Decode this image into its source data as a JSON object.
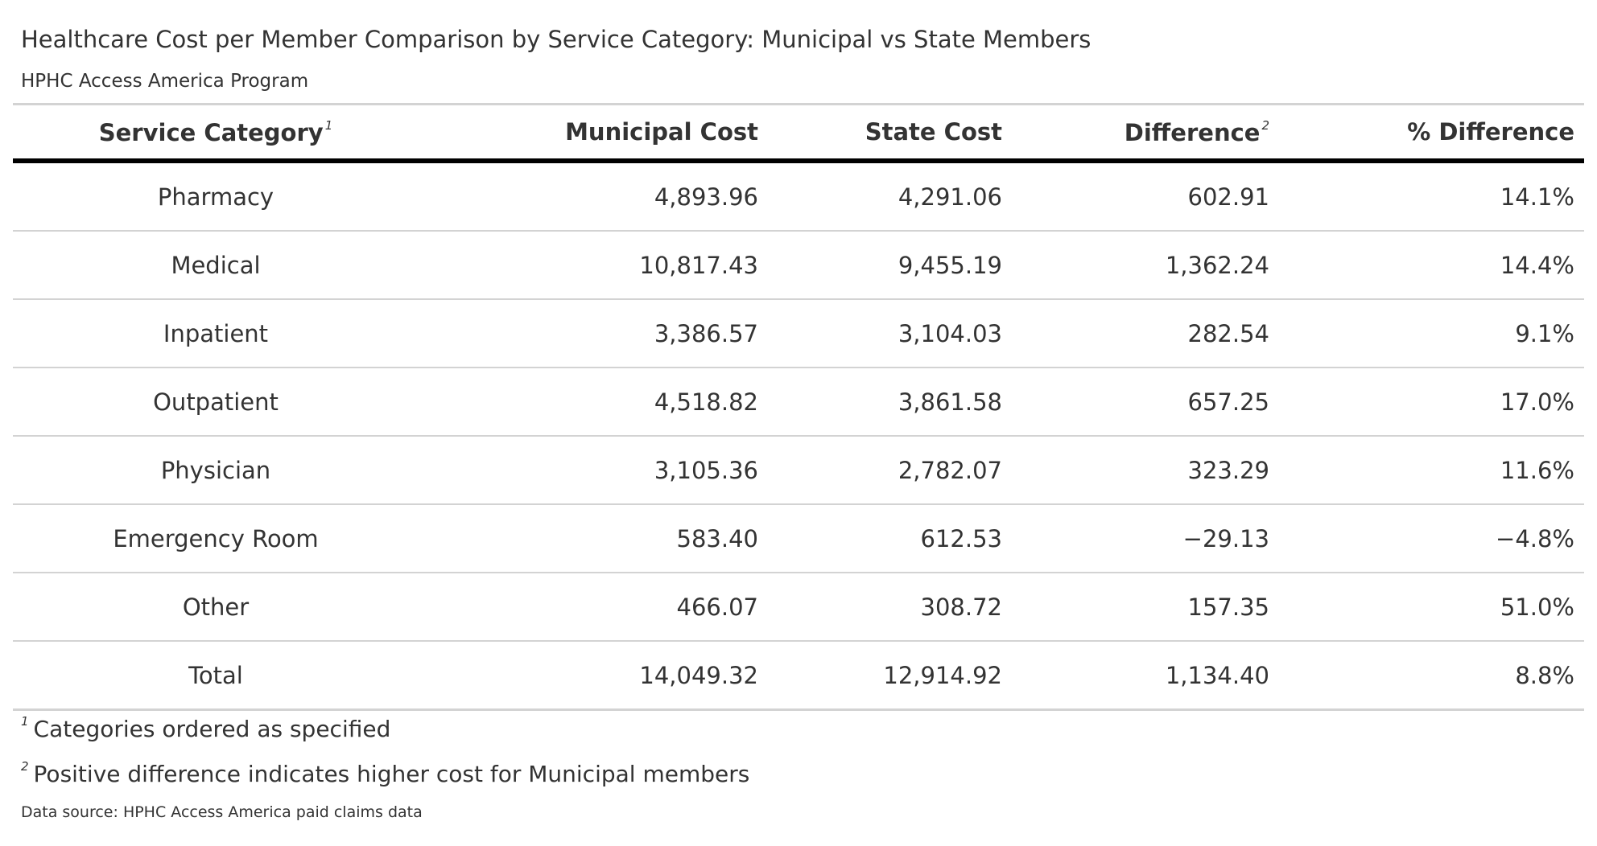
{
  "header": {
    "title": "Healthcare Cost per Member Comparison by Service Category: Municipal vs State Members",
    "subtitle": "HPHC Access America Program"
  },
  "table": {
    "columns": [
      {
        "label": "Service Category",
        "note": "1"
      },
      {
        "label": "Municipal Cost"
      },
      {
        "label": "State Cost"
      },
      {
        "label": "Difference",
        "note": "2"
      },
      {
        "label": "% Difference"
      }
    ],
    "rows": [
      [
        "Pharmacy",
        "4,893.96",
        "4,291.06",
        "602.91",
        "14.1%"
      ],
      [
        "Medical",
        "10,817.43",
        "9,455.19",
        "1,362.24",
        "14.4%"
      ],
      [
        "Inpatient",
        "3,386.57",
        "3,104.03",
        "282.54",
        "9.1%"
      ],
      [
        "Outpatient",
        "4,518.82",
        "3,861.58",
        "657.25",
        "17.0%"
      ],
      [
        "Physician",
        "3,105.36",
        "2,782.07",
        "323.29",
        "11.6%"
      ],
      [
        "Emergency Room",
        "583.40",
        "612.53",
        "−29.13",
        "−4.8%"
      ],
      [
        "Other",
        "466.07",
        "308.72",
        "157.35",
        "51.0%"
      ],
      [
        "Total",
        "14,049.32",
        "12,914.92",
        "1,134.40",
        "8.8%"
      ]
    ]
  },
  "footnotes": [
    {
      "marker": "1",
      "text": "Categories ordered as specified"
    },
    {
      "marker": "2",
      "text": "Positive difference indicates higher cost for Municipal members"
    }
  ],
  "source": "Data source: HPHC Access America paid claims data"
}
